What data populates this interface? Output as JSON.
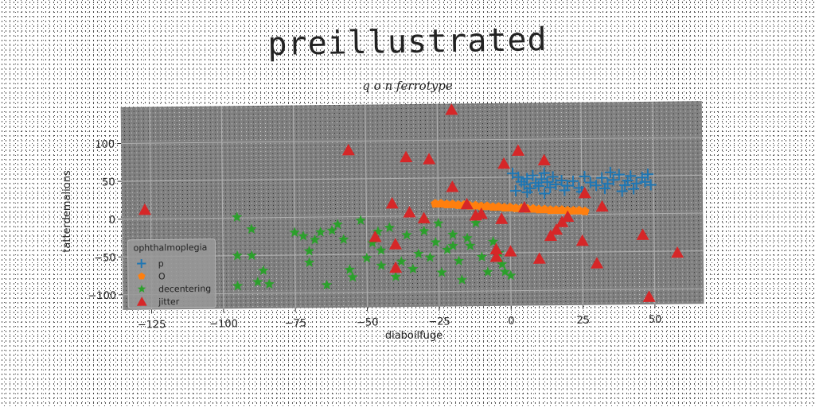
{
  "chart_data": {
    "type": "scatter",
    "title": "preillustrated",
    "subtitle": "q o n ferrotype",
    "xlabel": "diaboilfuge",
    "ylabel": "tatterdemalions",
    "xlim": [
      -135,
      67
    ],
    "ylim": [
      -120,
      148
    ],
    "xticks": [
      -125,
      -100,
      -75,
      -50,
      -25,
      0,
      25,
      50
    ],
    "xtick_labels": [
      "−125",
      "−100",
      "−75",
      "−50",
      "−25",
      "0",
      "25",
      "50"
    ],
    "yticks": [
      -100,
      -50,
      0,
      50,
      100
    ],
    "ytick_labels": [
      "−100",
      "−50",
      "0",
      "50",
      "100"
    ],
    "grid": true,
    "background": "#808080",
    "legend": {
      "title": "ophthalmoplegia",
      "placement": "lower-left"
    },
    "series": [
      {
        "name": "p",
        "marker": "plus",
        "color": "#1f77b4",
        "points": [
          [
            1,
            55
          ],
          [
            3,
            50
          ],
          [
            4,
            44
          ],
          [
            5,
            40
          ],
          [
            6,
            48
          ],
          [
            7,
            35
          ],
          [
            8,
            52
          ],
          [
            9,
            42
          ],
          [
            10,
            38
          ],
          [
            11,
            47
          ],
          [
            12,
            55
          ],
          [
            13,
            43
          ],
          [
            14,
            36
          ],
          [
            15,
            50
          ],
          [
            16,
            40
          ],
          [
            18,
            45
          ],
          [
            20,
            38
          ],
          [
            22,
            44
          ],
          [
            24,
            35
          ],
          [
            26,
            50
          ],
          [
            28,
            42
          ],
          [
            30,
            38
          ],
          [
            32,
            48
          ],
          [
            34,
            40
          ],
          [
            35,
            55
          ],
          [
            36,
            45
          ],
          [
            38,
            52
          ],
          [
            40,
            38
          ],
          [
            41,
            44
          ],
          [
            42,
            50
          ],
          [
            44,
            40
          ],
          [
            46,
            48
          ],
          [
            47,
            42
          ],
          [
            48,
            52
          ],
          [
            49,
            38
          ],
          [
            2,
            32
          ],
          [
            6,
            30
          ],
          [
            12,
            28
          ],
          [
            19,
            32
          ],
          [
            25,
            30
          ],
          [
            33,
            34
          ],
          [
            39,
            30
          ],
          [
            43,
            33
          ]
        ]
      },
      {
        "name": "O",
        "marker": "pentagon",
        "color": "#ff7f0e",
        "points": [
          [
            -26,
            16
          ],
          [
            -24,
            16
          ],
          [
            -22,
            15
          ],
          [
            -20,
            15
          ],
          [
            -18,
            14
          ],
          [
            -16,
            14
          ],
          [
            -14,
            13
          ],
          [
            -12,
            13
          ],
          [
            -10,
            12
          ],
          [
            -8,
            12
          ],
          [
            -6,
            11
          ],
          [
            -4,
            11
          ],
          [
            -2,
            10
          ],
          [
            0,
            10
          ],
          [
            2,
            9
          ],
          [
            4,
            9
          ],
          [
            6,
            8
          ],
          [
            8,
            8
          ],
          [
            10,
            7
          ],
          [
            12,
            7
          ],
          [
            14,
            6
          ],
          [
            16,
            6
          ],
          [
            18,
            6
          ],
          [
            20,
            5
          ],
          [
            22,
            5
          ],
          [
            24,
            5
          ],
          [
            26,
            4
          ]
        ]
      },
      {
        "name": "decentering",
        "marker": "star",
        "color": "#2ca02c",
        "points": [
          [
            -95,
            1
          ],
          [
            -95,
            -50
          ],
          [
            -95,
            -90
          ],
          [
            -90,
            -15
          ],
          [
            -90,
            -50
          ],
          [
            -88,
            -85
          ],
          [
            -86,
            -70
          ],
          [
            -84,
            -88
          ],
          [
            -75,
            -20
          ],
          [
            -72,
            -25
          ],
          [
            -70,
            -45
          ],
          [
            -70,
            -60
          ],
          [
            -68,
            -30
          ],
          [
            -66,
            -20
          ],
          [
            -64,
            -90
          ],
          [
            -62,
            -18
          ],
          [
            -60,
            -10
          ],
          [
            -58,
            -30
          ],
          [
            -56,
            -70
          ],
          [
            -55,
            -80
          ],
          [
            -52,
            -5
          ],
          [
            -50,
            -55
          ],
          [
            -48,
            -35
          ],
          [
            -46,
            -20
          ],
          [
            -45,
            -65
          ],
          [
            -42,
            -15
          ],
          [
            -40,
            -80
          ],
          [
            -38,
            -60
          ],
          [
            -36,
            -25
          ],
          [
            -34,
            -70
          ],
          [
            -32,
            -50
          ],
          [
            -30,
            -20
          ],
          [
            -28,
            -55
          ],
          [
            -26,
            -35
          ],
          [
            -24,
            -75
          ],
          [
            -22,
            -45
          ],
          [
            -20,
            -25
          ],
          [
            -18,
            -60
          ],
          [
            -17,
            -85
          ],
          [
            -14,
            -40
          ],
          [
            -12,
            -10
          ],
          [
            -10,
            -55
          ],
          [
            -8,
            -75
          ],
          [
            -6,
            -35
          ],
          [
            -4,
            -50
          ],
          [
            -3,
            -65
          ],
          [
            -2,
            -75
          ],
          [
            0,
            -80
          ],
          [
            -45,
            -45
          ],
          [
            -30,
            -5
          ],
          [
            -25,
            -10
          ],
          [
            -20,
            -40
          ],
          [
            -15,
            -30
          ]
        ]
      },
      {
        "name": "jitter",
        "marker": "triangle",
        "color": "#d62728",
        "points": [
          [
            -127,
            12
          ],
          [
            -56,
            88
          ],
          [
            -47,
            -27
          ],
          [
            -41,
            17
          ],
          [
            -40,
            -37
          ],
          [
            -40,
            -68
          ],
          [
            -36,
            78
          ],
          [
            -35,
            5
          ],
          [
            -30,
            -3
          ],
          [
            -28,
            75
          ],
          [
            -20,
            38
          ],
          [
            -20,
            140
          ],
          [
            -15,
            15
          ],
          [
            -12,
            0
          ],
          [
            -10,
            2
          ],
          [
            -5,
            -45
          ],
          [
            -5,
            -55
          ],
          [
            -3,
            -5
          ],
          [
            -2,
            68
          ],
          [
            0,
            -48
          ],
          [
            3,
            85
          ],
          [
            5,
            10
          ],
          [
            10,
            -58
          ],
          [
            12,
            72
          ],
          [
            14,
            -28
          ],
          [
            16,
            -20
          ],
          [
            18,
            -10
          ],
          [
            20,
            -3
          ],
          [
            25,
            -35
          ],
          [
            26,
            28
          ],
          [
            30,
            -65
          ],
          [
            32,
            10
          ],
          [
            46,
            -28
          ],
          [
            48,
            -110
          ],
          [
            58,
            -52
          ]
        ]
      }
    ]
  }
}
